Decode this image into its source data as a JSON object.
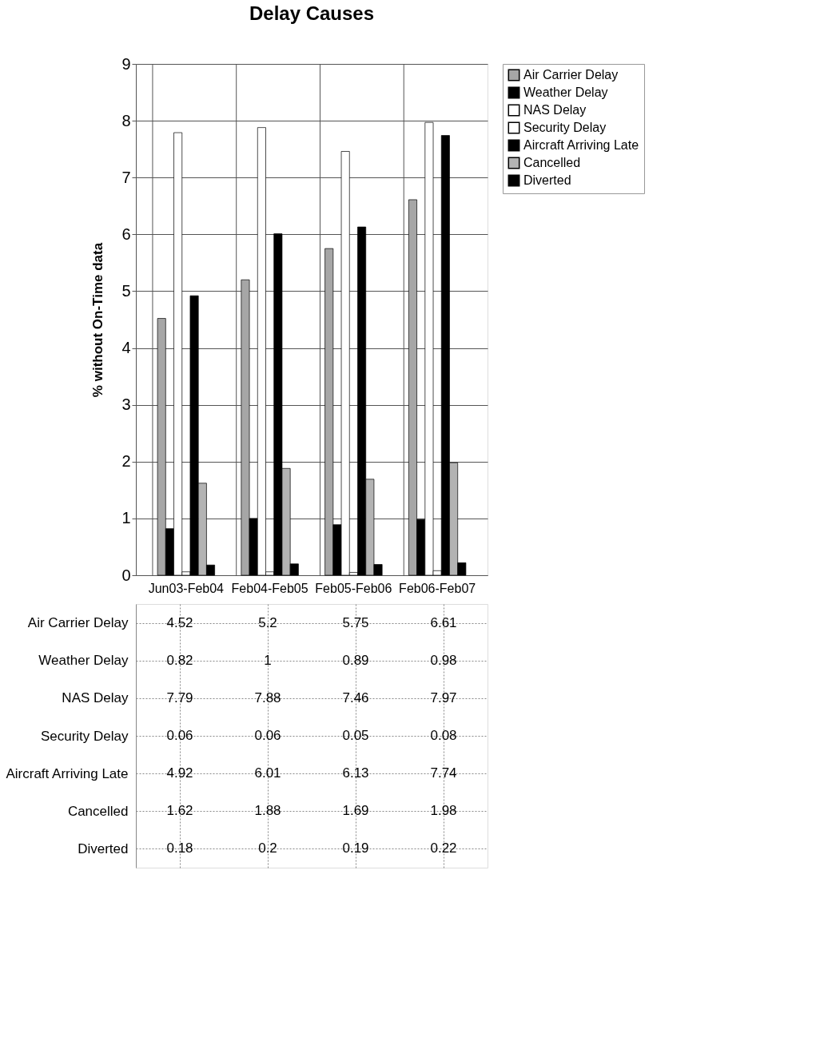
{
  "chart_data": {
    "type": "bar",
    "title": "Delay Causes",
    "ylabel": "% without On-Time data",
    "categories": [
      "Jun03-Feb04",
      "Feb04-Feb05",
      "Feb05-Feb06",
      "Feb06-Feb07"
    ],
    "series": [
      {
        "name": "Air Carrier Delay",
        "color": "#a6a6a6",
        "values": [
          4.52,
          5.2,
          5.75,
          6.61
        ]
      },
      {
        "name": "Weather Delay",
        "color": "#000000",
        "values": [
          0.82,
          1,
          0.89,
          0.98
        ]
      },
      {
        "name": "NAS Delay",
        "color": "#ffffff",
        "values": [
          7.79,
          7.88,
          7.46,
          7.97
        ]
      },
      {
        "name": "Security Delay",
        "color": "#ffffff",
        "values": [
          0.06,
          0.06,
          0.05,
          0.08
        ]
      },
      {
        "name": "Aircraft Arriving Late",
        "color": "#000000",
        "values": [
          4.92,
          6.01,
          6.13,
          7.74
        ]
      },
      {
        "name": "Cancelled",
        "color": "#b3b3b3",
        "values": [
          1.62,
          1.88,
          1.69,
          1.98
        ]
      },
      {
        "name": "Diverted",
        "color": "#000000",
        "values": [
          0.18,
          0.2,
          0.19,
          0.22
        ]
      }
    ],
    "ylim": [
      0,
      9
    ],
    "yticks": [
      0,
      1,
      2,
      3,
      4,
      5,
      6,
      7,
      8,
      9
    ],
    "grid": true,
    "legend": "right",
    "data_labels": true
  }
}
